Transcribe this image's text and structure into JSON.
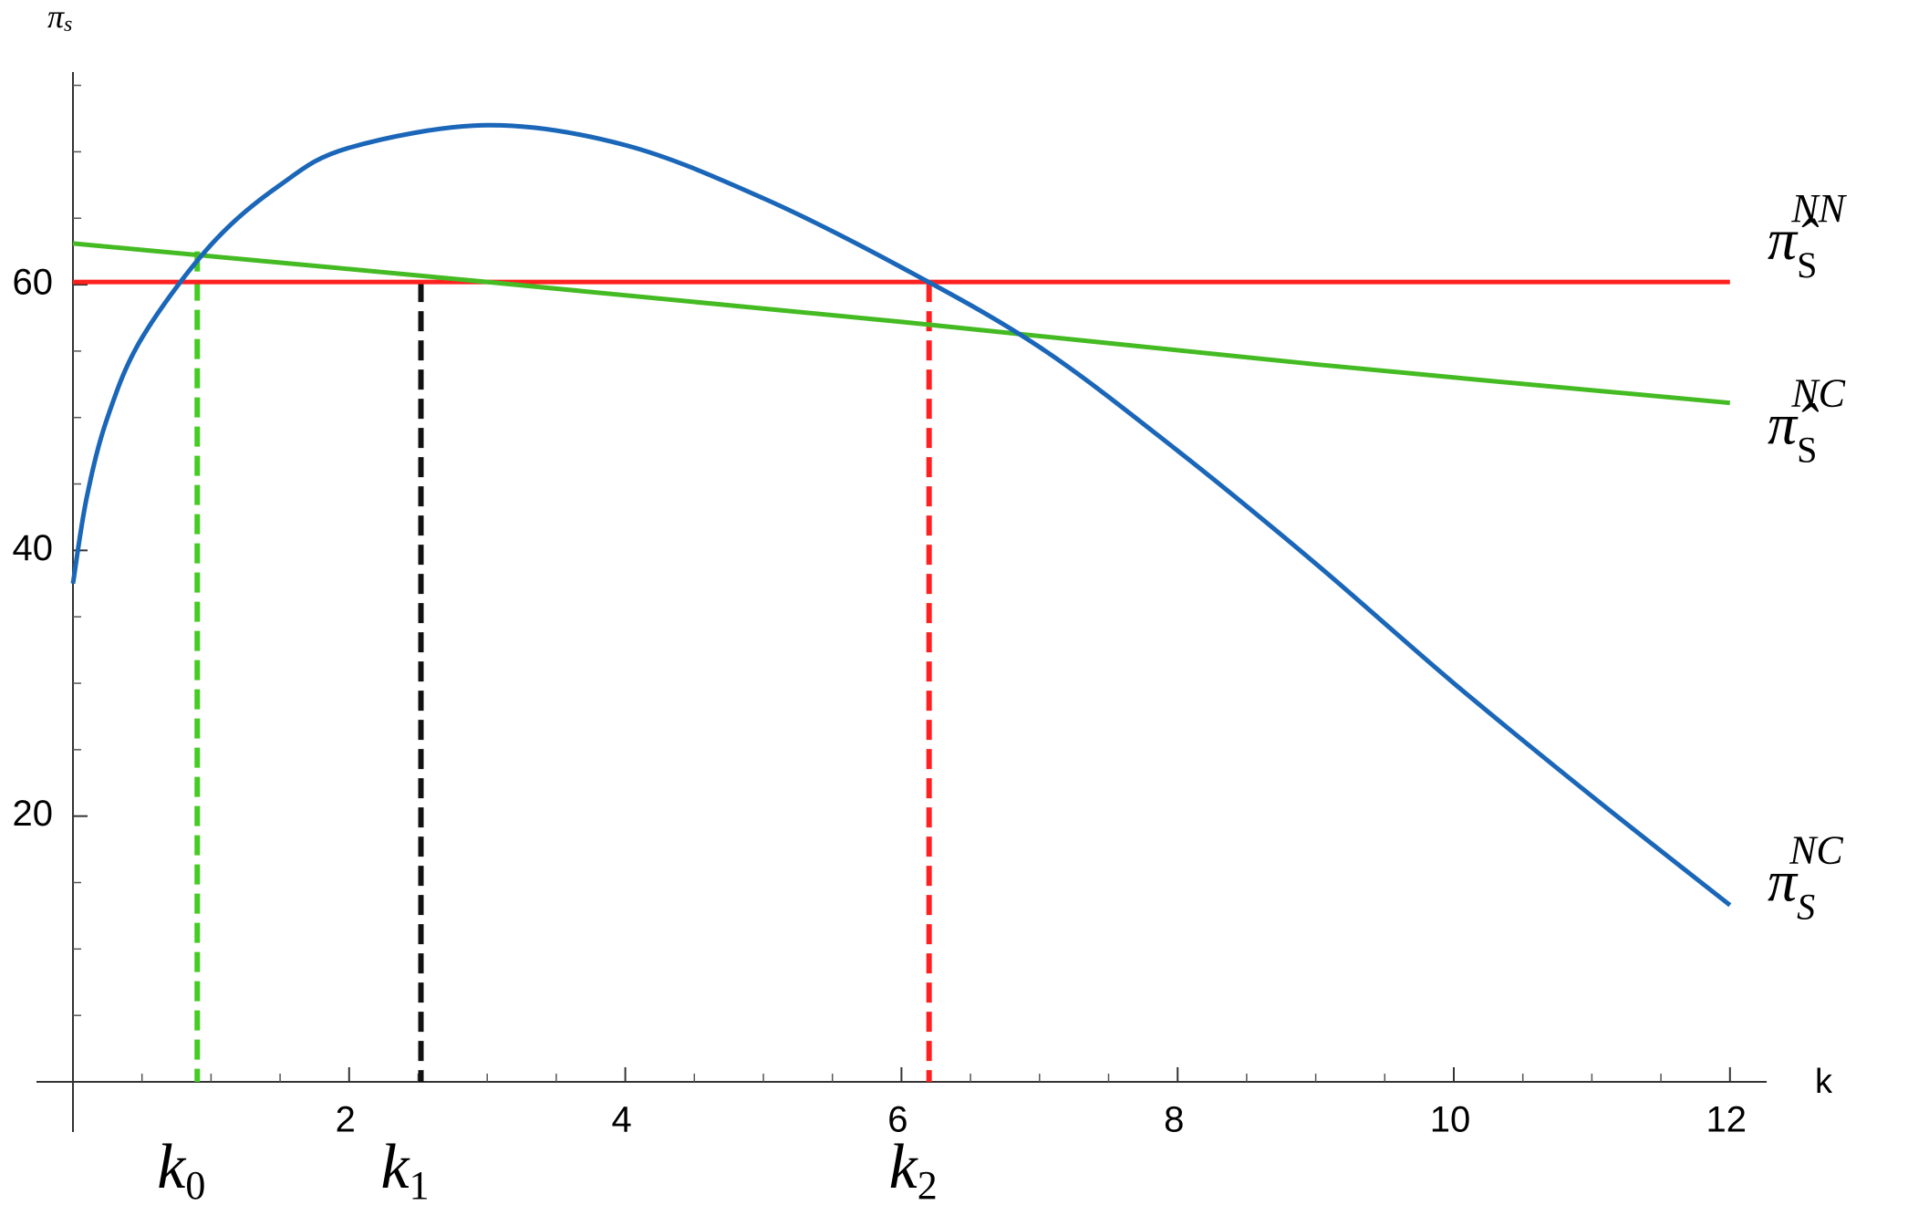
{
  "chart_data": {
    "type": "line",
    "x_label": "k",
    "y_label": {
      "main": "π",
      "sub": "s"
    },
    "xlim": [
      0,
      12.2
    ],
    "ylim": [
      0,
      76
    ],
    "xticks": [
      2,
      4,
      6,
      8,
      10,
      12
    ],
    "yticks": [
      20,
      40,
      60
    ],
    "x_minor_ticks": [
      0.5,
      1,
      1.5,
      2.5,
      3,
      3.5,
      4.5,
      5,
      5.5,
      6.5,
      7,
      7.5,
      8.5,
      9,
      9.5,
      10.5,
      11,
      11.5
    ],
    "y_minor_ticks": [
      5,
      10,
      15,
      25,
      30,
      35,
      45,
      50,
      55,
      65,
      70,
      75
    ],
    "series": [
      {
        "name": "π̂",
        "sub": "S",
        "sup": "NN",
        "color": "#ff2020",
        "x": [
          0,
          12
        ],
        "values": [
          60.2,
          60.2
        ]
      },
      {
        "name": "π̂",
        "sub": "S",
        "sup": "NC",
        "color": "#44bb22",
        "x": [
          0,
          3,
          6,
          9,
          12
        ],
        "values": [
          63.1,
          60.2,
          57.2,
          54.0,
          51.1
        ]
      },
      {
        "name": "π",
        "sub": "S",
        "sup": "NC",
        "color": "#1a66b8",
        "x": [
          0,
          0.1,
          0.25,
          0.5,
          1,
          1.5,
          2,
          3,
          4,
          5,
          6,
          7,
          8,
          9,
          10,
          11,
          12
        ],
        "values": [
          37.5,
          44,
          50,
          56,
          63,
          67.5,
          70.3,
          72,
          70.5,
          66.5,
          61.3,
          55.3,
          47.5,
          39,
          30,
          21.5,
          13.3
        ]
      }
    ],
    "markers": [
      {
        "label": "k",
        "sub": "0",
        "x": 0.9,
        "y": 62.5,
        "color": "#44cc22"
      },
      {
        "label": "k",
        "sub": "1",
        "x": 2.52,
        "y": 60.2,
        "color": "#111111"
      },
      {
        "label": "k",
        "sub": "2",
        "x": 6.2,
        "y": 60.2,
        "color": "#ff2020"
      }
    ]
  }
}
